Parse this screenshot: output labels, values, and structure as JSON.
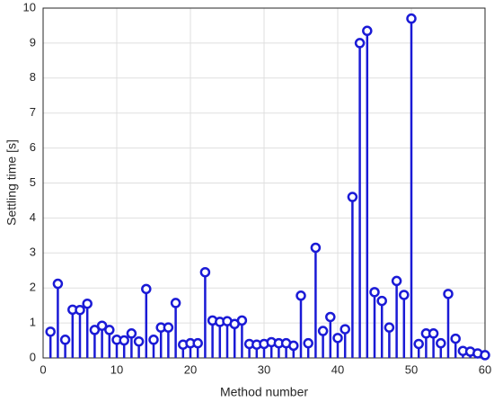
{
  "chart_data": {
    "type": "stem",
    "xlabel": "Method number",
    "ylabel": "Settling time [s]",
    "x": [
      1,
      2,
      3,
      4,
      5,
      6,
      7,
      8,
      9,
      10,
      11,
      12,
      13,
      14,
      15,
      16,
      17,
      18,
      19,
      20,
      21,
      22,
      23,
      24,
      25,
      26,
      27,
      28,
      29,
      30,
      31,
      32,
      33,
      34,
      35,
      36,
      37,
      38,
      39,
      40,
      41,
      42,
      43,
      44,
      45,
      46,
      47,
      48,
      49,
      50,
      51,
      52,
      53,
      54,
      55,
      56,
      57,
      58,
      59,
      60
    ],
    "values": [
      0.75,
      2.12,
      0.52,
      1.38,
      1.37,
      1.55,
      0.8,
      0.92,
      0.8,
      0.52,
      0.5,
      0.7,
      0.47,
      1.97,
      0.52,
      0.87,
      0.87,
      1.57,
      0.38,
      0.42,
      0.42,
      2.45,
      1.07,
      1.03,
      1.05,
      0.97,
      1.07,
      0.4,
      0.38,
      0.4,
      0.45,
      0.42,
      0.42,
      0.35,
      1.78,
      0.42,
      3.15,
      0.77,
      1.17,
      0.57,
      0.82,
      4.6,
      9.0,
      9.35,
      1.88,
      1.63,
      0.87,
      2.2,
      1.8,
      9.7,
      0.4,
      0.7,
      0.7,
      0.42,
      1.83,
      0.55,
      0.2,
      0.18,
      0.13,
      0.08
    ],
    "color": "#1a1ad6",
    "xlim": [
      0,
      60
    ],
    "xticks": [
      0,
      10,
      20,
      30,
      40,
      50,
      60
    ],
    "ylim": [
      0,
      10
    ],
    "yticks": [
      0,
      1,
      2,
      3,
      4,
      5,
      6,
      7,
      8,
      9,
      10
    ],
    "grid": true
  }
}
